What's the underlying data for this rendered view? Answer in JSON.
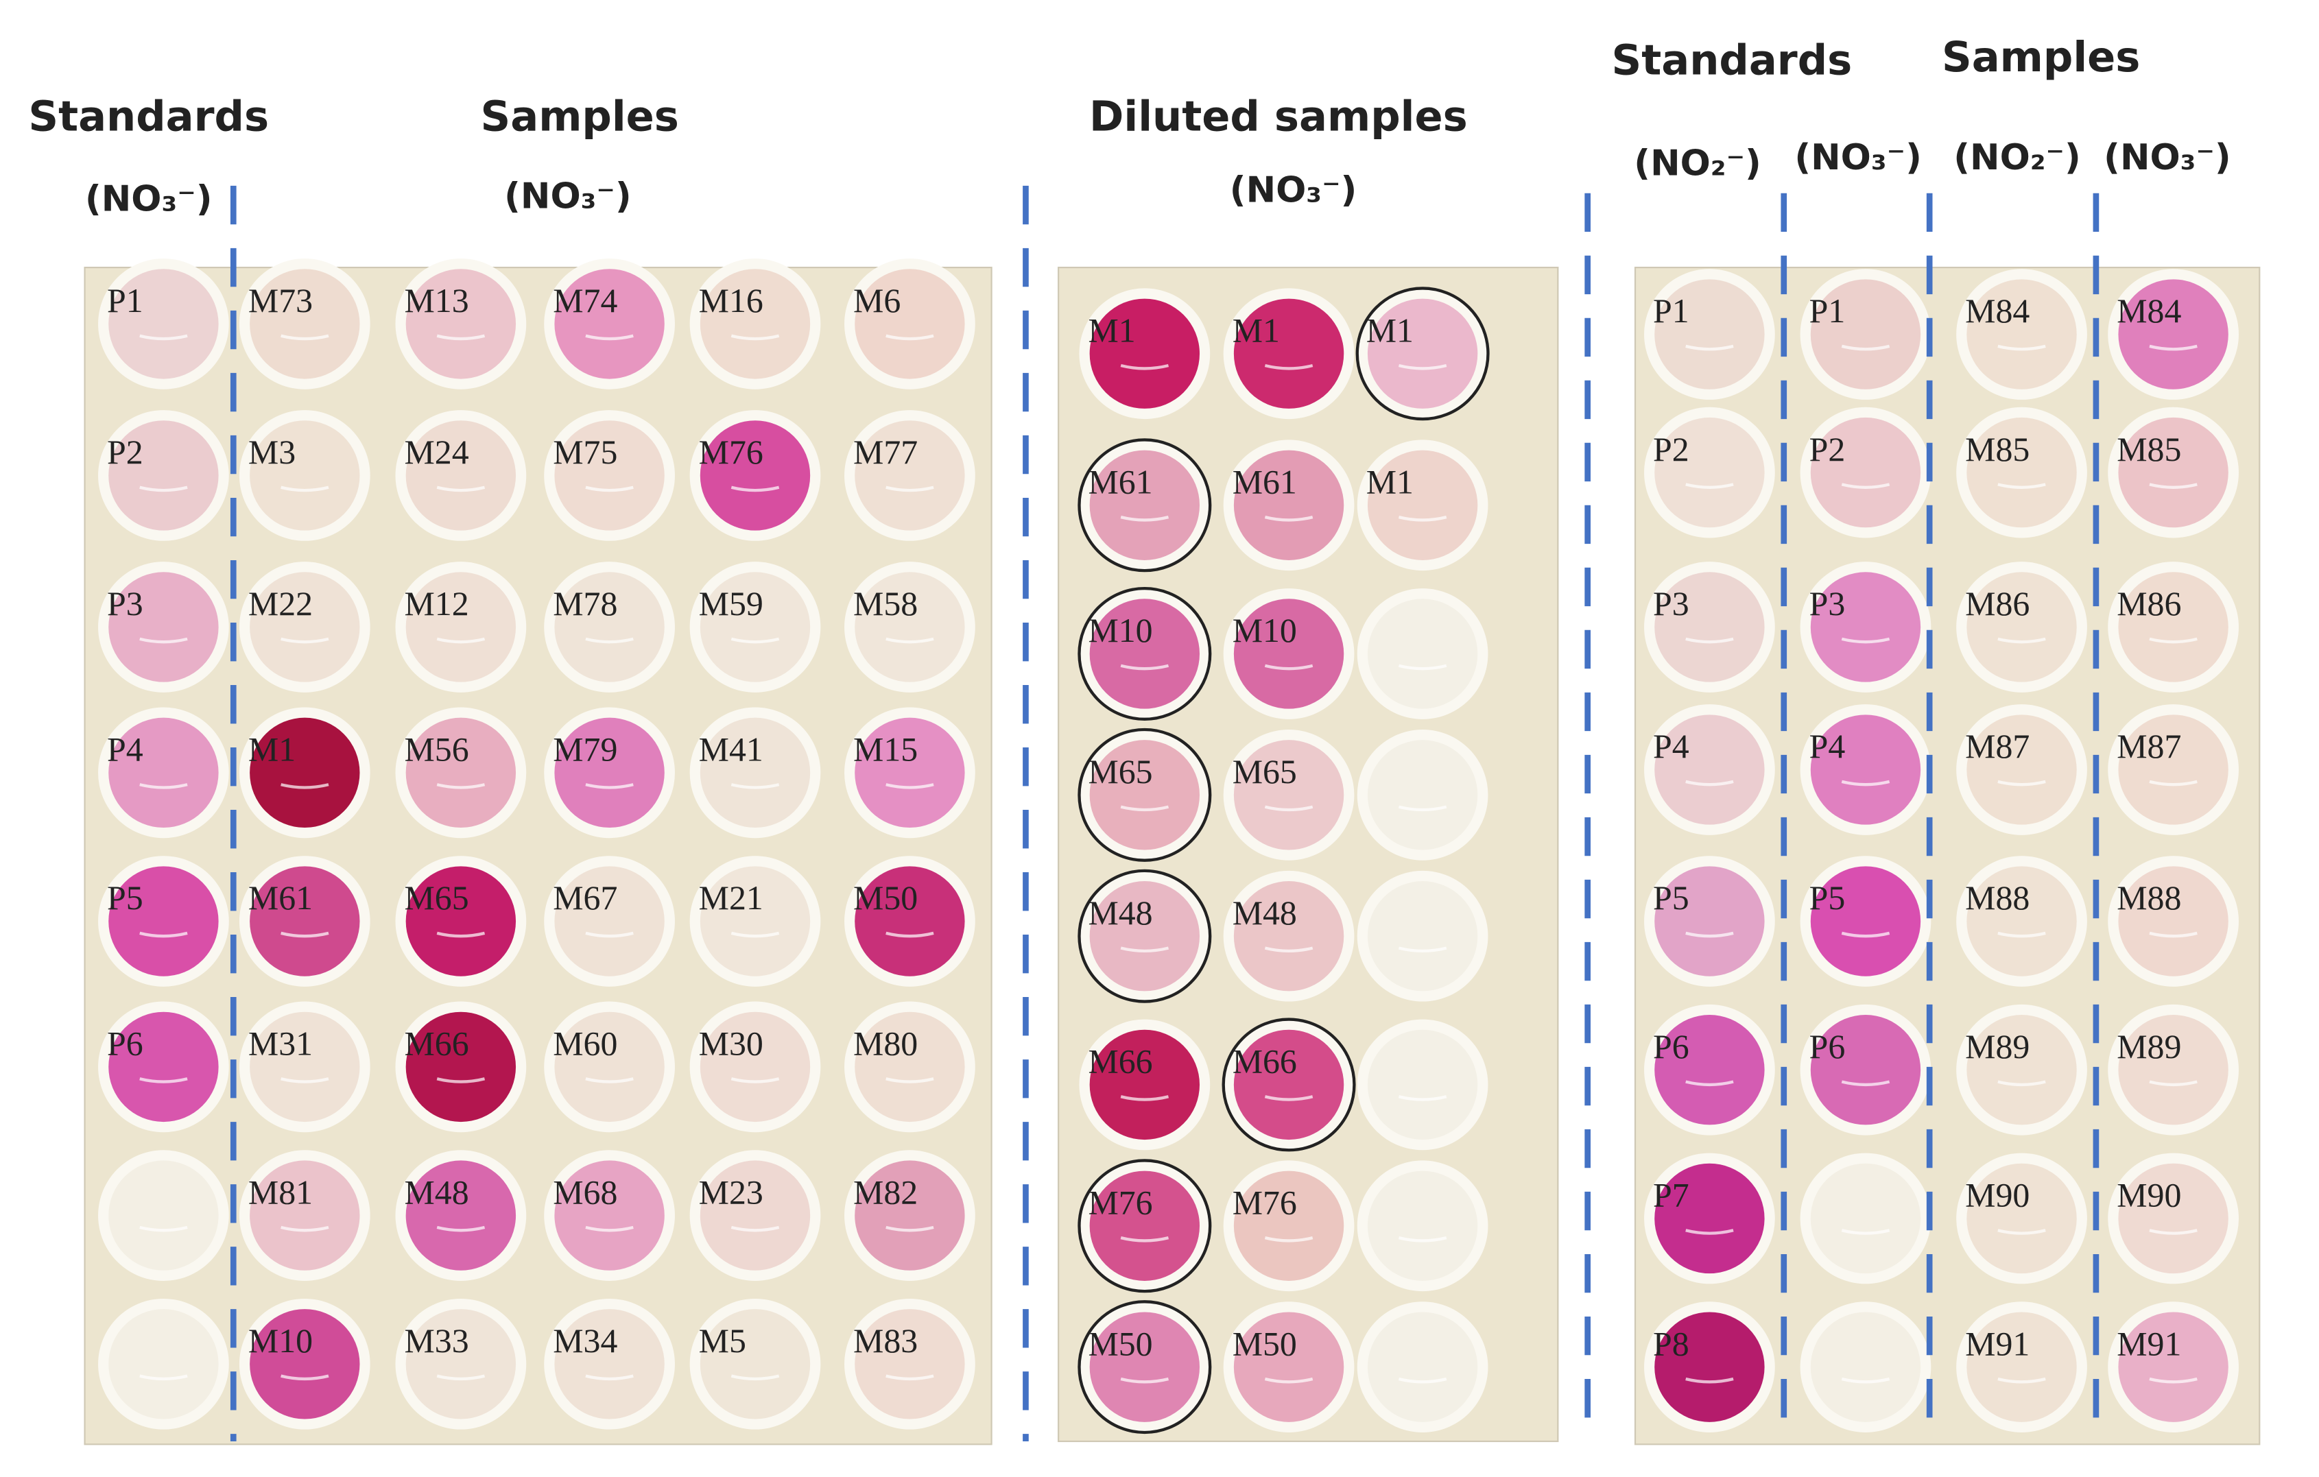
{
  "headers": [
    {
      "text": "Standards",
      "x": 0
    },
    {
      "text": "(NO₃⁻)"
    },
    {
      "text": "Samples"
    },
    {
      "text": "(NO₃⁻)"
    },
    {
      "text": "Diluted  samples"
    },
    {
      "text": "(NO₃⁻)"
    },
    {
      "text": "Standards"
    },
    {
      "text": "Samples"
    },
    {
      "text": "(NO₂⁻)"
    },
    {
      "text": "(NO₃⁻)"
    },
    {
      "text": "(NO₂⁻)"
    },
    {
      "text": "(NO₃⁻)"
    }
  ],
  "plates": [
    {
      "rows": [
        [
          {
            "label": "P1",
            "color": "#ecd3d3"
          },
          {
            "label": "M73",
            "color": "#eedcd0"
          },
          {
            "label": "M13",
            "color": "#ecc5cc"
          },
          {
            "label": "M74",
            "color": "#e796c0"
          },
          {
            "label": "M16",
            "color": "#efdcd0"
          },
          {
            "label": "M6",
            "color": "#efd6cc"
          }
        ],
        [
          {
            "label": "P2",
            "color": "#ebcccf"
          },
          {
            "label": "M3",
            "color": "#efe2d4"
          },
          {
            "label": "M24",
            "color": "#eedcd2"
          },
          {
            "label": "M75",
            "color": "#efdcd2"
          },
          {
            "label": "M76",
            "color": "#d74ea0"
          },
          {
            "label": "M77",
            "color": "#efe0d4"
          }
        ],
        [
          {
            "label": "P3",
            "color": "#e8b0c8"
          },
          {
            "label": "M22",
            "color": "#efe2d6"
          },
          {
            "label": "M12",
            "color": "#efe0d5"
          },
          {
            "label": "M78",
            "color": "#efe4d8"
          },
          {
            "label": "M59",
            "color": "#f0e6da"
          },
          {
            "label": "M58",
            "color": "#f0e6da"
          }
        ],
        [
          {
            "label": "P4",
            "color": "#e59ac4"
          },
          {
            "label": "M1",
            "color": "#a8123f"
          },
          {
            "label": "M56",
            "color": "#e8aec0"
          },
          {
            "label": "M79",
            "color": "#e080bc"
          },
          {
            "label": "M41",
            "color": "#efe4d8"
          },
          {
            "label": "M15",
            "color": "#e590c4"
          }
        ],
        [
          {
            "label": "P5",
            "color": "#d94fa8"
          },
          {
            "label": "M61",
            "color": "#cf4a8e"
          },
          {
            "label": "M65",
            "color": "#c41e6a"
          },
          {
            "label": "M67",
            "color": "#efe2d6"
          },
          {
            "label": "M21",
            "color": "#f0e6da"
          },
          {
            "label": "M50",
            "color": "#c83079"
          }
        ],
        [
          {
            "label": "P6",
            "color": "#d856ad"
          },
          {
            "label": "M31",
            "color": "#efe2d6"
          },
          {
            "label": "M66",
            "color": "#b3164f"
          },
          {
            "label": "M60",
            "color": "#efe2d6"
          },
          {
            "label": "M30",
            "color": "#efddd4"
          },
          {
            "label": "M80",
            "color": "#efdfd3"
          }
        ],
        [
          {
            "color": "#f3efe4"
          },
          {
            "label": "M81",
            "color": "#ebc3cb"
          },
          {
            "label": "M48",
            "color": "#d868ad"
          },
          {
            "label": "M68",
            "color": "#e7a4c4"
          },
          {
            "label": "M23",
            "color": "#eed8d2"
          },
          {
            "label": "M82",
            "color": "#e2a0b8"
          }
        ],
        [
          {
            "color": "#f3efe4"
          },
          {
            "label": "M10",
            "color": "#d04c98"
          },
          {
            "label": "M33",
            "color": "#efe4d8"
          },
          {
            "label": "M34",
            "color": "#efe2d6"
          },
          {
            "label": "M5",
            "color": "#efe6d8"
          },
          {
            "label": "M83",
            "color": "#efdcd2"
          }
        ]
      ]
    },
    {
      "rows": [
        [
          {
            "label": "M1",
            "color": "#c81e64"
          },
          {
            "label": "M1",
            "color": "#cc2a6e"
          },
          {
            "label": "M1",
            "color": "#ebb8cc",
            "circled": true
          }
        ],
        [
          {
            "label": "M61",
            "color": "#e4a2b8",
            "circled": true
          },
          {
            "label": "M61",
            "color": "#e39cb4"
          },
          {
            "label": "M1",
            "color": "#eed4cc"
          }
        ],
        [
          {
            "label": "M10",
            "color": "#d86aa4",
            "circled": true
          },
          {
            "label": "M10",
            "color": "#d86aa4"
          },
          {
            "color": "#f3f0e6"
          }
        ],
        [
          {
            "label": "M65",
            "color": "#e8b0bc",
            "circled": true
          },
          {
            "label": "M65",
            "color": "#eccacc"
          },
          {
            "color": "#f3f0e6"
          }
        ],
        [
          {
            "label": "M48",
            "color": "#e8b8c4",
            "circled": true
          },
          {
            "label": "M48",
            "color": "#ebc6c8"
          },
          {
            "color": "#f3f0e6"
          }
        ],
        [
          {
            "label": "M66",
            "color": "#c2205c"
          },
          {
            "label": "M66",
            "color": "#d44c8a",
            "circled": true
          },
          {
            "color": "#f3f0e6"
          }
        ],
        [
          {
            "label": "M76",
            "color": "#d4528e",
            "circled": true
          },
          {
            "label": "M76",
            "color": "#ebc6c0"
          },
          {
            "color": "#f3f0e6"
          }
        ],
        [
          {
            "label": "M50",
            "color": "#df86b2",
            "circled": true
          },
          {
            "label": "M50",
            "color": "#e7a8bc"
          },
          {
            "color": "#f3f0e6"
          }
        ]
      ]
    },
    {
      "rows": [
        [
          {
            "label": "P1",
            "color": "#eddcd2"
          },
          {
            "label": "P1",
            "color": "#ecd0cc"
          },
          {
            "label": "M84",
            "color": "#efe0d2"
          },
          {
            "label": "M84",
            "color": "#e080bc"
          }
        ],
        [
          {
            "label": "P2",
            "color": "#efe0d6"
          },
          {
            "label": "P2",
            "color": "#ecc8cc"
          },
          {
            "label": "M85",
            "color": "#efe0d2"
          },
          {
            "label": "M85",
            "color": "#ecc4c8"
          }
        ],
        [
          {
            "label": "P3",
            "color": "#ecd6d2"
          },
          {
            "label": "P3",
            "color": "#e28cc4"
          },
          {
            "label": "M86",
            "color": "#efe2d4"
          },
          {
            "label": "M86",
            "color": "#efdcd0"
          }
        ],
        [
          {
            "label": "P4",
            "color": "#ebcdd0"
          },
          {
            "label": "P4",
            "color": "#e080c0"
          },
          {
            "label": "M87",
            "color": "#efe0d2"
          },
          {
            "label": "M87",
            "color": "#efdcd0"
          }
        ],
        [
          {
            "label": "P5",
            "color": "#e2a4c8"
          },
          {
            "label": "P5",
            "color": "#d94fb0"
          },
          {
            "label": "M88",
            "color": "#efe2d4"
          },
          {
            "label": "M88",
            "color": "#efd8cf"
          }
        ],
        [
          {
            "label": "P6",
            "color": "#d45cb2"
          },
          {
            "label": "P6",
            "color": "#d86ab4"
          },
          {
            "label": "M89",
            "color": "#efe2d4"
          },
          {
            "label": "M89",
            "color": "#efdcd2"
          }
        ],
        [
          {
            "label": "P7",
            "color": "#c42d8e"
          },
          {
            "color": "#f3efe4"
          },
          {
            "label": "M90",
            "color": "#efe2d4"
          },
          {
            "label": "M90",
            "color": "#efdad2"
          }
        ],
        [
          {
            "label": "P8",
            "color": "#b51c6c"
          },
          {
            "color": "#f3efe4"
          },
          {
            "label": "M91",
            "color": "#efe2d4"
          },
          {
            "label": "M91",
            "color": "#e9b0c8"
          }
        ]
      ]
    }
  ]
}
